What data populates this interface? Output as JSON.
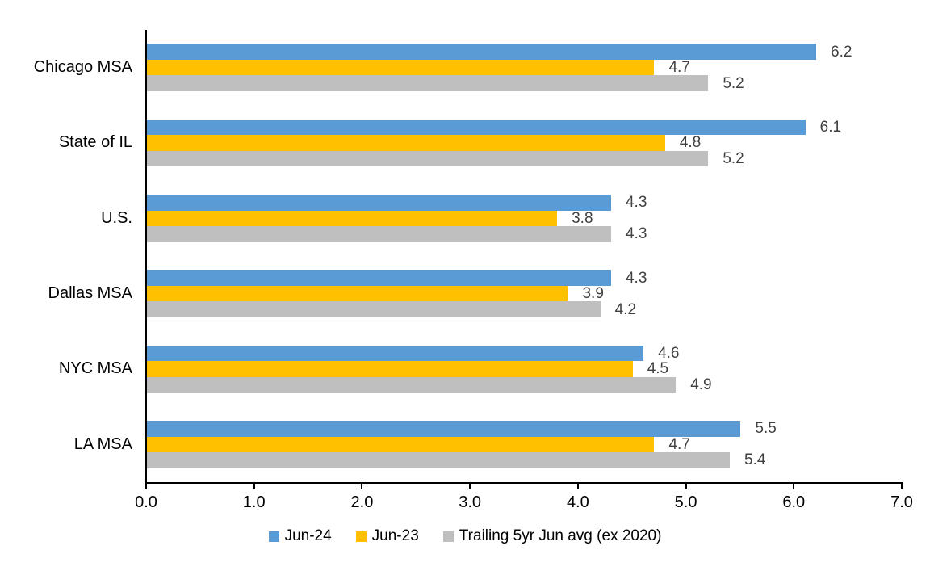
{
  "chart_data": {
    "type": "bar",
    "orientation": "horizontal",
    "title": "",
    "categories": [
      "Chicago MSA",
      "State of IL",
      "U.S.",
      "Dallas MSA",
      "NYC MSA",
      "LA MSA"
    ],
    "series": [
      {
        "name": "Jun-24",
        "color": "#5B9BD5",
        "values": [
          6.2,
          6.1,
          4.3,
          4.3,
          4.6,
          5.5
        ]
      },
      {
        "name": "Jun-23",
        "color": "#FFC000",
        "values": [
          4.7,
          4.8,
          3.8,
          3.9,
          4.5,
          4.7
        ]
      },
      {
        "name": "Trailing 5yr Jun avg (ex 2020)",
        "color": "#BFBFBF",
        "values": [
          5.2,
          5.2,
          4.3,
          4.2,
          4.9,
          5.4
        ]
      }
    ],
    "value_labels": [
      "6.2",
      "6.1",
      "4.3",
      "4.3",
      "4.6",
      "5.5",
      "4.7",
      "4.8",
      "3.8",
      "3.9",
      "4.5",
      "4.7",
      "5.2",
      "5.2",
      "4.3",
      "4.2",
      "4.9",
      "5.4"
    ],
    "xlim": [
      0,
      7
    ],
    "x_tick_labels": [
      "0.0",
      "1.0",
      "2.0",
      "3.0",
      "4.0",
      "5.0",
      "6.0",
      "7.0"
    ],
    "xlabel": "",
    "ylabel": "",
    "grid": false,
    "legend_position": "bottom",
    "colors": {
      "axis": "#000000",
      "category_label": "#000000",
      "tick_label": "#000000",
      "value_label": "#404040",
      "background": "#FFFFFF"
    }
  }
}
